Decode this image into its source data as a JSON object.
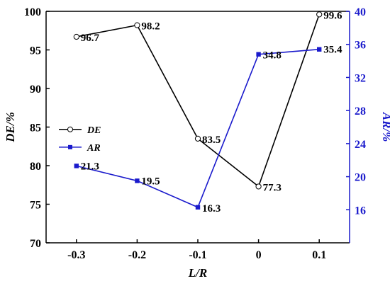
{
  "chart_data": {
    "type": "line",
    "x": [
      -0.3,
      -0.2,
      -0.1,
      0,
      0.1
    ],
    "x_tick_labels": [
      "-0.3",
      "-0.2",
      "-0.1",
      "0",
      "0.1"
    ],
    "xlabel": "L/R",
    "xlim": [
      -0.35,
      0.15
    ],
    "y_left": {
      "label": "DE/%",
      "lim": [
        70,
        100
      ],
      "ticks": [
        70,
        75,
        80,
        85,
        90,
        95,
        100
      ],
      "tick_labels": [
        "70",
        "75",
        "80",
        "85",
        "90",
        "95",
        "100"
      ],
      "color": "#000000"
    },
    "y_right": {
      "label": "AR/%",
      "lim": [
        12,
        40
      ],
      "ticks": [
        16,
        20,
        24,
        28,
        32,
        36,
        40
      ],
      "tick_labels": [
        "16",
        "20",
        "24",
        "28",
        "32",
        "36",
        "40"
      ],
      "color": "#1a1acc"
    },
    "series": [
      {
        "name": "DE",
        "axis": "left",
        "color": "#000000",
        "marker": "open-circle",
        "values": [
          96.7,
          98.2,
          83.5,
          77.3,
          99.6
        ],
        "labels": [
          "96.7",
          "98.2",
          "83.5",
          "77.3",
          "99.6"
        ]
      },
      {
        "name": "AR",
        "axis": "right",
        "color": "#1a1acc",
        "marker": "filled-square",
        "values": [
          21.3,
          19.5,
          16.3,
          34.8,
          35.4
        ],
        "labels": [
          "21.3",
          "19.5",
          "16.3",
          "34.8",
          "35.4"
        ]
      }
    ],
    "legend": {
      "position": "middle-left",
      "entries": [
        "DE",
        "AR"
      ]
    },
    "grid": false
  }
}
